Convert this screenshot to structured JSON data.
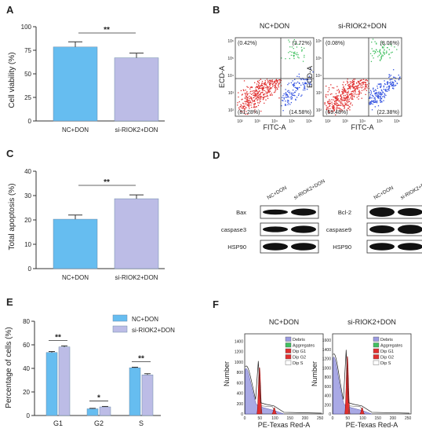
{
  "panels": {
    "A": {
      "letter": "A",
      "sig": "**",
      "ylabel": "Cell viability (%)",
      "yticks": [
        "0",
        "25",
        "50",
        "75",
        "100"
      ]
    },
    "B": {
      "letter": "B",
      "titles": [
        "NC+DON",
        "si-RIOK2+DON"
      ],
      "xlabel": "FITC-A",
      "ylabel": "ECD-A",
      "quadrants": [
        [
          "(0.42%)",
          "(3.72%)",
          "(81.28%)",
          "(14.58%)"
        ],
        [
          "(0.08%)",
          "(8.06%)",
          "(69.48%)",
          "(22.38%)"
        ]
      ],
      "ticks": [
        "10²",
        "10³",
        "10⁴",
        "10⁵",
        "10⁶"
      ]
    },
    "C": {
      "letter": "C",
      "sig": "**",
      "ylabel": "Total apoptosis (%)",
      "yticks": [
        "0",
        "10",
        "20",
        "30",
        "40"
      ]
    },
    "D": {
      "letter": "D",
      "lanes": [
        "NC+DON",
        "si-RIOK2+DON"
      ],
      "left": [
        "Bax",
        "caspase3",
        "HSP90"
      ],
      "right": [
        "Bcl-2",
        "caspase9",
        "HSP90"
      ]
    },
    "E": {
      "letter": "E",
      "ylabel": "Percentage of cells (%)",
      "yticks": [
        "0",
        "20",
        "40",
        "60",
        "80"
      ],
      "sig": [
        "**",
        "*",
        "**"
      ]
    },
    "F": {
      "letter": "F",
      "titles": [
        "NC+DON",
        "si-RIOK2+DON"
      ],
      "xlabel": "PE-Texas Red-A",
      "ylabel": "Number",
      "legend": [
        "Debris",
        "Aggregates",
        "Dip G1",
        "Dip G2",
        "Dip S"
      ],
      "yticks1": [
        "0",
        "200",
        "400",
        "600",
        "800",
        "1000",
        "1200",
        "1400"
      ],
      "yticks2": [
        "0",
        "200",
        "400",
        "600",
        "800",
        "1000",
        "1200",
        "1400",
        "1600"
      ],
      "xticks": [
        "0",
        "50",
        "100",
        "150",
        "200",
        "250"
      ]
    }
  },
  "colors": {
    "nc": "#66bdf0",
    "si": "#bcbce6",
    "red": "#e03030",
    "blue": "#3050e0",
    "green": "#40c060"
  },
  "chart_data": [
    {
      "type": "bar",
      "categories": [
        "NC+DON",
        "si-RIOK2+DON"
      ],
      "values": [
        78.5,
        67
      ],
      "errors": [
        5.5,
        5
      ],
      "ylabel": "Cell viability (%)",
      "ylim": [
        0,
        100
      ]
    },
    {
      "type": "bar",
      "categories": [
        "NC+DON",
        "si-RIOK2+DON"
      ],
      "values": [
        20.3,
        28.7
      ],
      "errors": [
        1.7,
        1.6
      ],
      "ylabel": "Total apoptosis (%)",
      "ylim": [
        0,
        40
      ]
    },
    {
      "type": "bar",
      "categories": [
        "G1",
        "G2",
        "S"
      ],
      "series": [
        {
          "name": "NC+DON",
          "values": [
            53.5,
            5.7,
            40.5
          ],
          "errors": [
            0.8,
            0.4,
            0.5
          ]
        },
        {
          "name": "si-RIOK2+DON",
          "values": [
            58.2,
            7.3,
            34.5
          ],
          "errors": [
            0.9,
            0.4,
            1.0
          ]
        }
      ],
      "ylabel": "Percentage of cells (%)",
      "ylim": [
        0,
        80
      ],
      "legend": "top-right"
    }
  ]
}
